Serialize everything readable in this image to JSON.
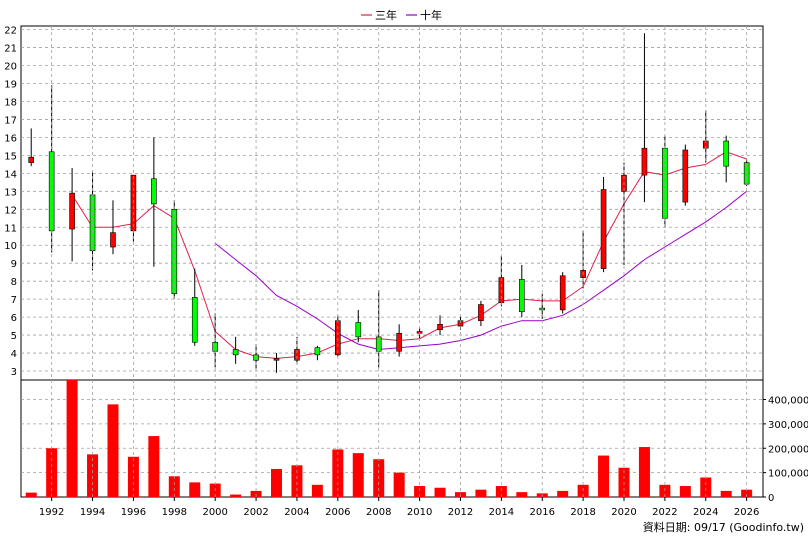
{
  "credit": "資料日期: 09/17  (Goodinfo.tw)",
  "chart_data": [
    {
      "type": "candlestick",
      "ylim": [
        2.5,
        22.2
      ],
      "y_ticks": [
        "3",
        "4",
        "5",
        "6",
        "7",
        "8",
        "9",
        "10",
        "11",
        "12",
        "13",
        "14",
        "15",
        "16",
        "17",
        "18",
        "19",
        "20",
        "21",
        "22"
      ],
      "x_ticks": [
        "1992",
        "1994",
        "1996",
        "1998",
        "2000",
        "2002",
        "2004",
        "2006",
        "2008",
        "2010",
        "2012",
        "2014",
        "2016",
        "2018",
        "2020",
        "2022",
        "2024",
        "2026"
      ],
      "grid": true,
      "legend_position": "top-center",
      "colors": {
        "up": "#ff0000",
        "down": "#00ff00",
        "ma3": "#e0204b",
        "ma10": "#9900cc"
      },
      "candles": [
        {
          "year": 1991,
          "open": 14.6,
          "close": 14.9,
          "high": 16.5,
          "low": 14.4
        },
        {
          "year": 1992,
          "open": 15.2,
          "close": 10.8,
          "high": 18.9,
          "low": 9.6
        },
        {
          "year": 1993,
          "open": 10.9,
          "close": 12.9,
          "high": 14.3,
          "low": 9.1
        },
        {
          "year": 1994,
          "open": 12.8,
          "close": 9.7,
          "high": 14.1,
          "low": 8.6
        },
        {
          "year": 1995,
          "open": 9.9,
          "close": 10.7,
          "high": 12.5,
          "low": 9.5
        },
        {
          "year": 1996,
          "open": 10.8,
          "close": 13.9,
          "high": 13.9,
          "low": 10.2
        },
        {
          "year": 1997,
          "open": 13.7,
          "close": 12.3,
          "high": 16.0,
          "low": 8.8
        },
        {
          "year": 1998,
          "open": 12.0,
          "close": 7.3,
          "high": 12.5,
          "low": 7.0
        },
        {
          "year": 1999,
          "open": 7.1,
          "close": 4.6,
          "high": 8.7,
          "low": 4.4
        },
        {
          "year": 2000,
          "open": 4.6,
          "close": 4.1,
          "high": 6.2,
          "low": 3.2
        },
        {
          "year": 2001,
          "open": 4.2,
          "close": 3.9,
          "high": 4.9,
          "low": 3.4
        },
        {
          "year": 2002,
          "open": 3.9,
          "close": 3.6,
          "high": 4.5,
          "low": 3.1
        },
        {
          "year": 2003,
          "open": 3.6,
          "close": 3.7,
          "high": 4.0,
          "low": 2.9
        },
        {
          "year": 2004,
          "open": 3.6,
          "close": 4.2,
          "high": 4.9,
          "low": 3.4
        },
        {
          "year": 2005,
          "open": 4.3,
          "close": 3.9,
          "high": 4.4,
          "low": 3.6
        },
        {
          "year": 2006,
          "open": 3.9,
          "close": 5.8,
          "high": 6.1,
          "low": 3.8
        },
        {
          "year": 2007,
          "open": 5.7,
          "close": 4.9,
          "high": 6.4,
          "low": 4.6
        },
        {
          "year": 2008,
          "open": 4.9,
          "close": 4.1,
          "high": 7.5,
          "low": 3.2
        },
        {
          "year": 2009,
          "open": 4.1,
          "close": 5.1,
          "high": 5.6,
          "low": 3.8
        },
        {
          "year": 2010,
          "open": 5.1,
          "close": 5.2,
          "high": 5.4,
          "low": 4.8
        },
        {
          "year": 2011,
          "open": 5.3,
          "close": 5.6,
          "high": 6.1,
          "low": 5.0
        },
        {
          "year": 2012,
          "open": 5.5,
          "close": 5.8,
          "high": 6.0,
          "low": 5.3
        },
        {
          "year": 2013,
          "open": 5.8,
          "close": 6.7,
          "high": 6.9,
          "low": 5.5
        },
        {
          "year": 2014,
          "open": 6.8,
          "close": 8.2,
          "high": 9.4,
          "low": 6.6
        },
        {
          "year": 2015,
          "open": 8.1,
          "close": 6.3,
          "high": 8.9,
          "low": 6.0
        },
        {
          "year": 2016,
          "open": 6.5,
          "close": 6.4,
          "high": 7.3,
          "low": 5.9
        },
        {
          "year": 2017,
          "open": 6.4,
          "close": 8.3,
          "high": 8.5,
          "low": 6.2
        },
        {
          "year": 2018,
          "open": 8.2,
          "close": 8.6,
          "high": 10.8,
          "low": 7.6
        },
        {
          "year": 2019,
          "open": 8.7,
          "close": 13.1,
          "high": 13.8,
          "low": 8.5
        },
        {
          "year": 2020,
          "open": 13.0,
          "close": 13.9,
          "high": 14.6,
          "low": 8.9
        },
        {
          "year": 2021,
          "open": 13.9,
          "close": 15.4,
          "high": 21.8,
          "low": 12.4
        },
        {
          "year": 2022,
          "open": 15.4,
          "close": 11.5,
          "high": 16.1,
          "low": 11.0
        },
        {
          "year": 2023,
          "open": 12.4,
          "close": 15.3,
          "high": 15.6,
          "low": 12.2
        },
        {
          "year": 2024,
          "open": 15.4,
          "close": 15.8,
          "high": 17.5,
          "low": 14.6
        },
        {
          "year": 2025,
          "open": 15.8,
          "close": 14.4,
          "high": 16.1,
          "low": 13.5
        },
        {
          "year": 2026,
          "open": 14.6,
          "close": 13.4,
          "high": 14.8,
          "low": 13.3
        }
      ],
      "series": [
        {
          "name": "三年",
          "x": [
            1993,
            1994,
            1995,
            1996,
            1997,
            1998,
            1999,
            2000,
            2001,
            2002,
            2003,
            2004,
            2005,
            2006,
            2007,
            2008,
            2009,
            2010,
            2011,
            2012,
            2013,
            2014,
            2015,
            2016,
            2017,
            2018,
            2019,
            2020,
            2021,
            2022,
            2023,
            2024,
            2025,
            2026
          ],
          "values": [
            12.8,
            11.0,
            11.0,
            11.2,
            12.2,
            11.5,
            8.6,
            5.2,
            4.2,
            3.8,
            3.7,
            3.8,
            4.0,
            4.5,
            4.8,
            4.8,
            4.7,
            4.8,
            5.4,
            5.6,
            6.1,
            6.9,
            7.0,
            6.9,
            6.9,
            7.7,
            10.2,
            12.3,
            14.1,
            13.9,
            14.3,
            14.5,
            15.2,
            14.8
          ]
        },
        {
          "name": "十年",
          "x": [
            2000,
            2001,
            2002,
            2003,
            2004,
            2005,
            2006,
            2007,
            2008,
            2009,
            2010,
            2011,
            2012,
            2013,
            2014,
            2015,
            2016,
            2017,
            2018,
            2019,
            2020,
            2021,
            2022,
            2023,
            2024,
            2025,
            2026
          ],
          "values": [
            10.1,
            9.2,
            8.3,
            7.2,
            6.6,
            5.9,
            5.1,
            4.5,
            4.2,
            4.3,
            4.4,
            4.5,
            4.7,
            5.0,
            5.5,
            5.8,
            5.8,
            6.1,
            6.7,
            7.5,
            8.3,
            9.2,
            9.9,
            10.6,
            11.3,
            12.1,
            13.0
          ]
        }
      ]
    },
    {
      "type": "bar",
      "ylim": [
        0,
        480000
      ],
      "y_ticks": [
        "400,000",
        "300,000",
        "200,000",
        "100,000",
        "0"
      ],
      "color": "#ff0000",
      "years": [
        1991,
        1992,
        1993,
        1994,
        1995,
        1996,
        1997,
        1998,
        1999,
        2000,
        2001,
        2002,
        2003,
        2004,
        2005,
        2006,
        2007,
        2008,
        2009,
        2010,
        2011,
        2012,
        2013,
        2014,
        2015,
        2016,
        2017,
        2018,
        2019,
        2020,
        2021,
        2022,
        2023,
        2024,
        2025,
        2026
      ],
      "values": [
        18000,
        200000,
        485000,
        175000,
        380000,
        165000,
        250000,
        85000,
        60000,
        55000,
        10000,
        25000,
        115000,
        130000,
        50000,
        195000,
        180000,
        155000,
        100000,
        45000,
        38000,
        20000,
        30000,
        45000,
        20000,
        15000,
        25000,
        50000,
        170000,
        120000,
        205000,
        50000,
        45000,
        80000,
        25000,
        30000
      ]
    }
  ]
}
